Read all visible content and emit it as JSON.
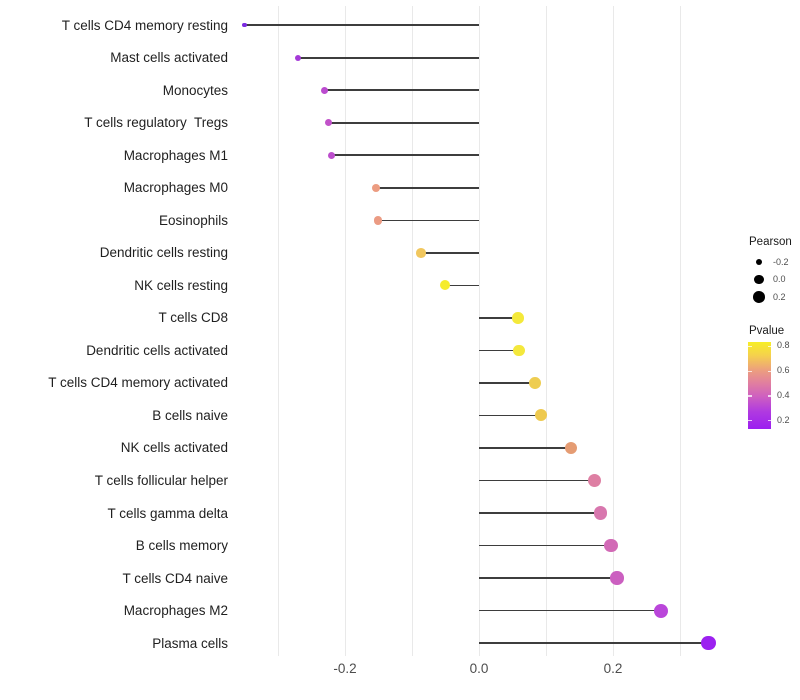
{
  "chart_data": {
    "type": "scatter",
    "variant": "horizontal-lollipop",
    "title": "",
    "xlabel": "",
    "ylabel": "",
    "grid": true,
    "legend_position": "right",
    "xlim": [
      -0.37,
      0.4
    ],
    "x_ticks": [
      {
        "label": "-0.2",
        "value": -0.2
      },
      {
        "label": "0.0",
        "value": 0.0
      },
      {
        "label": "0.2",
        "value": 0.2
      }
    ],
    "x_gridlines": [
      -0.3,
      -0.2,
      -0.1,
      0.0,
      0.1,
      0.2,
      0.3
    ],
    "categories": [
      "T cells CD4 memory resting",
      "Mast cells activated",
      "Monocytes",
      "T cells regulatory  Tregs",
      "Macrophages M1",
      "Macrophages M0",
      "Eosinophils",
      "Dendritic cells resting",
      "NK cells resting",
      "T cells CD8",
      "Dendritic cells activated",
      "T cells CD4 memory activated",
      "B cells naive",
      "NK cells activated",
      "T cells follicular helper",
      "T cells gamma delta",
      "B cells memory",
      "T cells CD4 naive",
      "Macrophages M2",
      "Plasma cells"
    ],
    "series": [
      {
        "name": "Pearson",
        "values": [
          -0.35,
          -0.27,
          -0.23,
          -0.225,
          -0.22,
          -0.154,
          -0.151,
          -0.087,
          -0.051,
          0.058,
          0.06,
          0.084,
          0.093,
          0.137,
          0.172,
          0.181,
          0.197,
          0.206,
          0.272,
          0.342
        ],
        "pvalue_est": [
          0.16,
          0.22,
          0.3,
          0.32,
          0.31,
          0.56,
          0.56,
          0.67,
          0.81,
          0.79,
          0.79,
          0.69,
          0.68,
          0.55,
          0.46,
          0.44,
          0.4,
          0.36,
          0.27,
          0.14
        ],
        "colors": [
          "#7b2be0",
          "#a53ad8",
          "#bb4bcf",
          "#c152c9",
          "#bd4ecd",
          "#ec9c81",
          "#eb9b83",
          "#f1c75e",
          "#f5ec2c",
          "#f4e93a",
          "#f4e83c",
          "#eecd51",
          "#eec94f",
          "#e59c73",
          "#de7fa3",
          "#d877ae",
          "#d26ab6",
          "#cb5fc0",
          "#ba46da",
          "#9c21f0"
        ]
      }
    ]
  },
  "legend": {
    "pearson": {
      "title": "Pearson",
      "dot_color": "#000000",
      "entries": [
        {
          "label": "-0.2",
          "value": -0.2
        },
        {
          "label": "0.0",
          "value": 0.0
        },
        {
          "label": "0.2",
          "value": 0.2
        }
      ]
    },
    "pvalue": {
      "title": "Pvalue",
      "range": [
        0.13,
        0.83
      ],
      "ticks": [
        {
          "label": "0.8",
          "p": 0.8
        },
        {
          "label": "0.6",
          "p": 0.6
        },
        {
          "label": "0.4",
          "p": 0.4
        },
        {
          "label": "0.2",
          "p": 0.2
        }
      ],
      "gradient_stops": [
        {
          "pct": 0,
          "color": "#f6ee27"
        },
        {
          "pct": 15,
          "color": "#f5d24c"
        },
        {
          "pct": 33,
          "color": "#ec9d80"
        },
        {
          "pct": 48,
          "color": "#e07da1"
        },
        {
          "pct": 62,
          "color": "#cf61bf"
        },
        {
          "pct": 80,
          "color": "#b03ae0"
        },
        {
          "pct": 100,
          "color": "#9c1ff0"
        }
      ]
    }
  },
  "colors": {
    "stem": "#3d3d3d",
    "gridline": "#e9e9e9",
    "axis_text": "#4d4d4d",
    "label_text": "#1f1f1f",
    "background": "#ffffff"
  }
}
